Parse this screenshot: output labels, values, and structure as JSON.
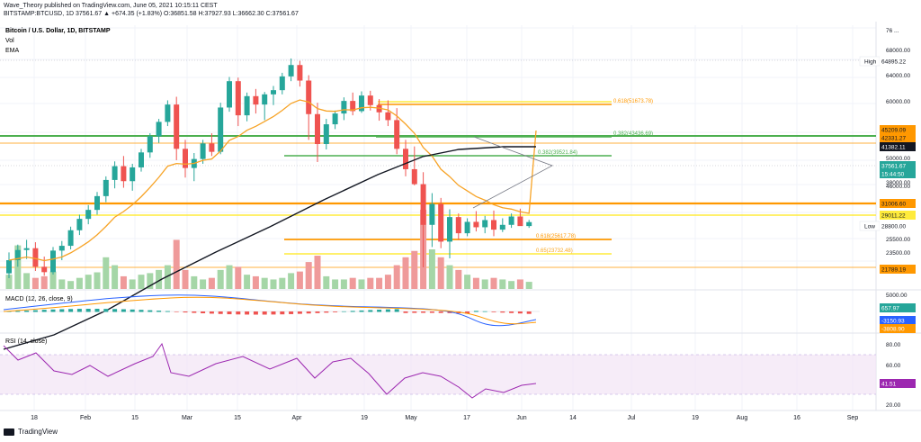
{
  "header": {
    "line1": "Wave_Theory published on TradingView.com, June 05, 2021 10:15:11 CEST",
    "line2": "BITSTAMP:BTCUSD, 1D  37561.67  ▲ +674.35 (+1.83%)  O:36851.58  H:37927.93  L:36662.30  C:37561.67"
  },
  "legend": {
    "title": "Bitcoin / U.S. Dollar, 1D, BITSTAMP",
    "vol": "Vol",
    "ema": "EMA",
    "macd": "MACD (12, 26, close, 9)",
    "rsi": "RSI (14, close)"
  },
  "footer": {
    "brand": "TradingView"
  },
  "colors": {
    "up": "#26a69a",
    "down": "#ef5350",
    "ema_fast": "#f7a326",
    "ema_slow": "#131722",
    "fib_green": "#4caf50",
    "fib_orange": "#ff9800",
    "fib_yellow": "#ffeb3b",
    "rsi": "#9c27b0"
  },
  "chart_data": [
    {
      "type": "candlestick",
      "title": "Bitcoin / U.S. Dollar, 1D, BITSTAMP",
      "x_ticks": [
        "18",
        "Feb",
        "15",
        "Mar",
        "15",
        "Apr",
        "19",
        "May",
        "17",
        "Jun",
        "14",
        "Jul",
        "19",
        "Aug",
        "16",
        "Sep"
      ],
      "y_ticks": [
        "76 ...",
        "68000.00",
        "64000.00",
        "60000.00",
        "55000.00",
        "50000.00",
        "46000.00",
        "38000.00",
        "34000.00",
        "28800.00",
        "25500.00",
        "23500.00"
      ],
      "price_labels": [
        {
          "label": "High",
          "value": "64895.22"
        },
        {
          "value": "45209.09"
        },
        {
          "value": "42331.27"
        },
        {
          "value": "41382.11"
        },
        {
          "value": "37561.67",
          "sub": "15:44:50"
        },
        {
          "value": "31006.60"
        },
        {
          "value": "29011.22"
        },
        {
          "label": "Low",
          "value": "28800.00"
        },
        {
          "value": "21789.19"
        }
      ],
      "levels": [
        {
          "label": "0.618(51673.78)",
          "value": 51673.78
        },
        {
          "label": "0.382(43436.69)",
          "value": 43436.69
        },
        {
          "label": "0.382(39521.84)",
          "value": 39521.84
        },
        {
          "label": "0.618(25617.78)",
          "value": 25617.78
        },
        {
          "label": "0.65(23732.48)",
          "value": 23732.48
        }
      ],
      "last_close": 37561.67,
      "ohlc": [
        [
          29000,
          32500,
          28200,
          31200
        ],
        [
          31200,
          33800,
          30100,
          32900
        ],
        [
          32900,
          34600,
          31400,
          33200
        ],
        [
          33200,
          34200,
          29400,
          30100
        ],
        [
          30100,
          31800,
          28600,
          29200
        ],
        [
          29200,
          33400,
          28800,
          32800
        ],
        [
          32800,
          34400,
          31200,
          33600
        ],
        [
          33600,
          36800,
          33000,
          36200
        ],
        [
          36200,
          38800,
          35400,
          38100
        ],
        [
          38100,
          40400,
          37200,
          39600
        ],
        [
          39600,
          42600,
          38800,
          41900
        ],
        [
          41900,
          45200,
          40900,
          44600
        ],
        [
          44600,
          47700,
          43200,
          46900
        ],
        [
          46900,
          48600,
          43300,
          44400
        ],
        [
          44400,
          47300,
          42800,
          46700
        ],
        [
          46700,
          49800,
          46000,
          49200
        ],
        [
          49200,
          52400,
          48300,
          51900
        ],
        [
          51900,
          54800,
          50800,
          54300
        ],
        [
          54300,
          57900,
          53600,
          57200
        ],
        [
          57200,
          58500,
          47900,
          49800
        ],
        [
          49800,
          51300,
          45000,
          46600
        ],
        [
          46600,
          49100,
          44400,
          48100
        ],
        [
          48100,
          51300,
          47300,
          50700
        ],
        [
          50700,
          52400,
          48600,
          49300
        ],
        [
          49300,
          57500,
          48900,
          56700
        ],
        [
          56700,
          61800,
          56000,
          61100
        ],
        [
          61100,
          61700,
          53600,
          55400
        ],
        [
          55400,
          59200,
          54400,
          58600
        ],
        [
          58600,
          59800,
          55700,
          57200
        ],
        [
          57200,
          59300,
          54600,
          58900
        ],
        [
          58900,
          60300,
          57100,
          59600
        ],
        [
          59600,
          62500,
          58900,
          61900
        ],
        [
          61900,
          64895,
          61100,
          63800
        ],
        [
          63800,
          64500,
          60200,
          61200
        ],
        [
          61200,
          62100,
          51300,
          55600
        ],
        [
          55600,
          57500,
          47600,
          50600
        ],
        [
          50600,
          54800,
          49700,
          53900
        ],
        [
          53900,
          56200,
          53100,
          55700
        ],
        [
          55700,
          58400,
          54600,
          57800
        ],
        [
          57800,
          59200,
          55400,
          56100
        ],
        [
          56100,
          59400,
          55800,
          58700
        ],
        [
          58700,
          59500,
          56200,
          57100
        ],
        [
          57100,
          58100,
          54500,
          55900
        ],
        [
          55900,
          57900,
          53600,
          54600
        ],
        [
          54600,
          56600,
          48900,
          49800
        ],
        [
          49800,
          51300,
          45200,
          46400
        ],
        [
          46400,
          50200,
          43700,
          43900
        ],
        [
          43900,
          45900,
          30000,
          37100
        ],
        [
          37100,
          42400,
          33400,
          40600
        ],
        [
          40600,
          41600,
          33200,
          34300
        ],
        [
          34300,
          39700,
          31500,
          38400
        ],
        [
          38400,
          39000,
          34600,
          35700
        ],
        [
          35700,
          38200,
          35200,
          37600
        ],
        [
          37600,
          39400,
          36000,
          36700
        ],
        [
          36700,
          38600,
          35700,
          37900
        ],
        [
          37900,
          39500,
          35200,
          36300
        ],
        [
          36300,
          38200,
          35900,
          37100
        ],
        [
          37100,
          39000,
          36600,
          38500
        ],
        [
          38500,
          39800,
          37100,
          36900
        ],
        [
          36900,
          37928,
          36600,
          37562
        ]
      ]
    },
    {
      "type": "bar",
      "name": "Vol",
      "values": [
        18,
        55,
        20,
        14,
        16,
        22,
        12,
        10,
        14,
        18,
        21,
        40,
        30,
        16,
        12,
        18,
        20,
        24,
        30,
        62,
        24,
        16,
        12,
        14,
        24,
        30,
        28,
        18,
        16,
        14,
        12,
        14,
        20,
        22,
        34,
        42,
        16,
        12,
        12,
        14,
        12,
        14,
        14,
        18,
        30,
        40,
        48,
        100,
        50,
        40,
        30,
        24,
        18,
        14,
        12,
        14,
        12,
        10,
        12,
        9
      ]
    },
    {
      "type": "line",
      "name": "MACD",
      "y_tick": "5000.00",
      "labels": [
        "657.97",
        "-3150.93",
        "-3808.90"
      ]
    },
    {
      "type": "line",
      "name": "RSI",
      "y_ticks": [
        "80.00",
        "60.00",
        "20.00"
      ],
      "last": "41.51"
    }
  ]
}
